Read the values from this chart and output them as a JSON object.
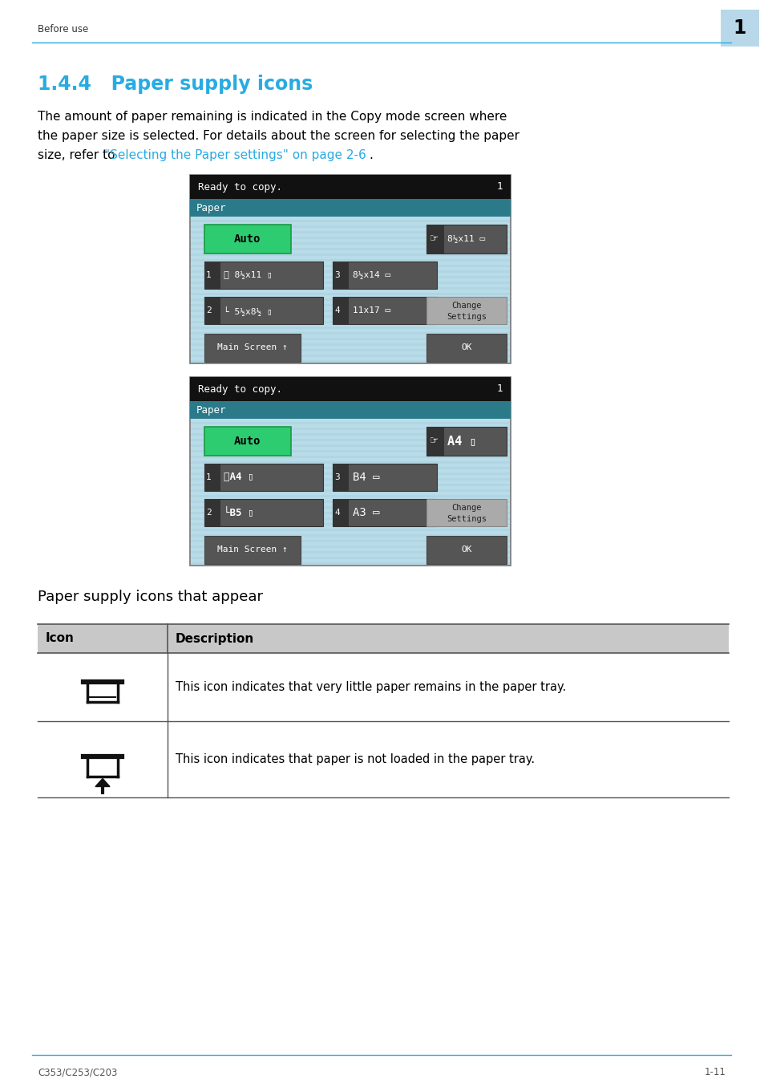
{
  "title": "1.4.4   Paper supply icons",
  "header_text": "Before use",
  "page_number": "1",
  "footer_left": "C353/C253/C203",
  "footer_right": "1-11",
  "body_line1": "The amount of paper remaining is indicated in the Copy mode screen where",
  "body_line2": "the paper size is selected. For details about the screen for selecting the paper",
  "body_line3_pre": "size, refer to ",
  "body_line3_link": "\"Selecting the Paper settings\" on page 2-6",
  "body_line3_post": ".",
  "section_text": "Paper supply icons that appear",
  "table_header_col1": "Icon",
  "table_header_col2": "Description",
  "table_row1_desc": "This icon indicates that very little paper remains in the paper tray.",
  "table_row2_desc": "This icon indicates that paper is not loaded in the paper tray.",
  "bg_color": "#ffffff",
  "header_line_color": "#29abe2",
  "title_color": "#29abe2",
  "body_color": "#000000",
  "link_color": "#29abe2",
  "screen_bg": "#b8dce8",
  "screen_header_bg": "#111111",
  "screen_paper_bar_bg": "#2a7a8a",
  "screen_button_bg": "#555555",
  "screen_dark_strip_bg": "#3a3a3a",
  "screen_auto_bg": "#2ecc71",
  "screen_change_bg": "#aaaaaa",
  "table_header_bg": "#c8c8c8",
  "table_line_color": "#888888",
  "page_num_bg": "#b8d8ea"
}
